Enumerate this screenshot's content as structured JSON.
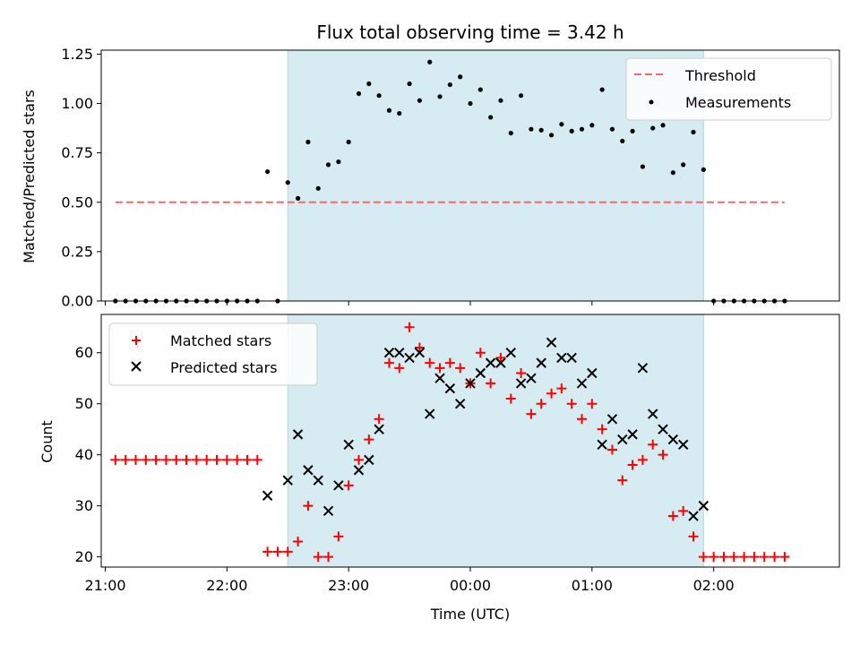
{
  "chart_data": [
    {
      "type": "scatter",
      "title": "Flux total observing time = 3.42 h",
      "ylabel": "Matched/Predicted stars",
      "xlabel": "",
      "x_unit": "minutes relative to 00:00 UTC",
      "xlim": [
        -182,
        182
      ],
      "ylim": [
        0,
        1.27
      ],
      "yticks": [
        0,
        0.25,
        0.5,
        0.75,
        1.0,
        1.25
      ],
      "ytick_labels": [
        "0.00",
        "0.25",
        "0.50",
        "0.75",
        "1.00",
        "1.25"
      ],
      "grid": false,
      "legend_position": "top-right",
      "shaded_interval": {
        "x": [
          -90,
          115
        ],
        "color": "#add8e6"
      },
      "threshold": {
        "name": "Threshold",
        "y": 0.5,
        "x": [
          -175,
          155
        ],
        "color": "#ff6464"
      },
      "series": [
        {
          "name": "Measurements",
          "marker": "dot",
          "color": "#000000",
          "points": [
            [
              -175,
              0
            ],
            [
              -170,
              0
            ],
            [
              -165,
              0
            ],
            [
              -160,
              0
            ],
            [
              -155,
              0
            ],
            [
              -150,
              0
            ],
            [
              -145,
              0
            ],
            [
              -140,
              0
            ],
            [
              -135,
              0
            ],
            [
              -130,
              0
            ],
            [
              -125,
              0
            ],
            [
              -120,
              0
            ],
            [
              -115,
              0
            ],
            [
              -110,
              0
            ],
            [
              -105,
              0
            ],
            [
              -95,
              0
            ],
            [
              -100,
              0.655
            ],
            [
              -90,
              0.6
            ],
            [
              -85,
              0.52
            ],
            [
              -80,
              0.805
            ],
            [
              -75,
              0.57
            ],
            [
              -70,
              0.69
            ],
            [
              -65,
              0.705
            ],
            [
              -60,
              0.805
            ],
            [
              -55,
              1.05
            ],
            [
              -50,
              1.1
            ],
            [
              -45,
              1.04
            ],
            [
              -40,
              0.965
            ],
            [
              -35,
              0.95
            ],
            [
              -30,
              1.1
            ],
            [
              -25,
              1.015
            ],
            [
              -20,
              1.21
            ],
            [
              -15,
              1.035
            ],
            [
              -10,
              1.095
            ],
            [
              -5,
              1.135
            ],
            [
              0,
              1.0
            ],
            [
              5,
              1.07
            ],
            [
              10,
              0.93
            ],
            [
              15,
              1.015
            ],
            [
              20,
              0.85
            ],
            [
              25,
              1.04
            ],
            [
              30,
              0.87
            ],
            [
              35,
              0.865
            ],
            [
              40,
              0.84
            ],
            [
              45,
              0.895
            ],
            [
              50,
              0.86
            ],
            [
              55,
              0.87
            ],
            [
              60,
              0.89
            ],
            [
              65,
              1.07
            ],
            [
              70,
              0.87
            ],
            [
              75,
              0.81
            ],
            [
              80,
              0.86
            ],
            [
              85,
              0.68
            ],
            [
              90,
              0.875
            ],
            [
              95,
              0.89
            ],
            [
              100,
              0.65
            ],
            [
              105,
              0.69
            ],
            [
              110,
              0.855
            ],
            [
              115,
              0.665
            ],
            [
              120,
              0
            ],
            [
              125,
              0
            ],
            [
              130,
              0
            ],
            [
              135,
              0
            ],
            [
              140,
              0
            ],
            [
              145,
              0
            ],
            [
              150,
              0
            ],
            [
              155,
              0
            ]
          ]
        }
      ]
    },
    {
      "type": "scatter",
      "title": "",
      "ylabel": "Count",
      "xlabel": "Time (UTC)",
      "x_unit": "minutes relative to 00:00 UTC",
      "xlim": [
        -182,
        182
      ],
      "ylim": [
        18,
        67.5
      ],
      "yticks": [
        20,
        30,
        40,
        50,
        60
      ],
      "ytick_labels": [
        "20",
        "30",
        "40",
        "50",
        "60"
      ],
      "xticks": [
        -180,
        -120,
        -60,
        0,
        60,
        120
      ],
      "xtick_labels": [
        "21:00",
        "22:00",
        "23:00",
        "00:00",
        "01:00",
        "02:00"
      ],
      "grid": false,
      "legend_position": "top-left",
      "shaded_interval": {
        "x": [
          -90,
          115
        ],
        "color": "#add8e6"
      },
      "series": [
        {
          "name": "Matched stars",
          "marker": "plus",
          "color": "#ff0000",
          "points": [
            [
              -175,
              39
            ],
            [
              -170,
              39
            ],
            [
              -165,
              39
            ],
            [
              -160,
              39
            ],
            [
              -155,
              39
            ],
            [
              -150,
              39
            ],
            [
              -145,
              39
            ],
            [
              -140,
              39
            ],
            [
              -135,
              39
            ],
            [
              -130,
              39
            ],
            [
              -125,
              39
            ],
            [
              -120,
              39
            ],
            [
              -115,
              39
            ],
            [
              -110,
              39
            ],
            [
              -105,
              39
            ],
            [
              -100,
              21
            ],
            [
              -95,
              21
            ],
            [
              -90,
              21
            ],
            [
              -85,
              23
            ],
            [
              -80,
              30
            ],
            [
              -75,
              20
            ],
            [
              -70,
              20
            ],
            [
              -65,
              24
            ],
            [
              -60,
              34
            ],
            [
              -55,
              39
            ],
            [
              -50,
              43
            ],
            [
              -45,
              47
            ],
            [
              -40,
              58
            ],
            [
              -35,
              57
            ],
            [
              -30,
              65
            ],
            [
              -25,
              61
            ],
            [
              -20,
              58
            ],
            [
              -15,
              57
            ],
            [
              -10,
              58
            ],
            [
              -5,
              57
            ],
            [
              0,
              54
            ],
            [
              5,
              60
            ],
            [
              10,
              54
            ],
            [
              15,
              59
            ],
            [
              20,
              51
            ],
            [
              25,
              56
            ],
            [
              30,
              48
            ],
            [
              35,
              50
            ],
            [
              40,
              52
            ],
            [
              45,
              53
            ],
            [
              50,
              50
            ],
            [
              55,
              47
            ],
            [
              60,
              50
            ],
            [
              65,
              45
            ],
            [
              70,
              41
            ],
            [
              75,
              35
            ],
            [
              80,
              38
            ],
            [
              85,
              39
            ],
            [
              90,
              42
            ],
            [
              95,
              40
            ],
            [
              100,
              28
            ],
            [
              105,
              29
            ],
            [
              110,
              24
            ],
            [
              115,
              20
            ],
            [
              120,
              20
            ],
            [
              125,
              20
            ],
            [
              130,
              20
            ],
            [
              135,
              20
            ],
            [
              140,
              20
            ],
            [
              145,
              20
            ],
            [
              150,
              20
            ],
            [
              155,
              20
            ]
          ]
        },
        {
          "name": "Predicted stars",
          "marker": "x",
          "color": "#000000",
          "points": [
            [
              -100,
              32
            ],
            [
              -90,
              35
            ],
            [
              -85,
              44
            ],
            [
              -80,
              37
            ],
            [
              -75,
              35
            ],
            [
              -70,
              29
            ],
            [
              -65,
              34
            ],
            [
              -60,
              42
            ],
            [
              -55,
              37
            ],
            [
              -50,
              39
            ],
            [
              -45,
              45
            ],
            [
              -40,
              60
            ],
            [
              -35,
              60
            ],
            [
              -30,
              59
            ],
            [
              -25,
              60
            ],
            [
              -20,
              48
            ],
            [
              -15,
              55
            ],
            [
              -10,
              53
            ],
            [
              -5,
              50
            ],
            [
              0,
              54
            ],
            [
              5,
              56
            ],
            [
              10,
              58
            ],
            [
              15,
              58
            ],
            [
              20,
              60
            ],
            [
              25,
              54
            ],
            [
              30,
              55
            ],
            [
              35,
              58
            ],
            [
              40,
              62
            ],
            [
              45,
              59
            ],
            [
              50,
              59
            ],
            [
              55,
              54
            ],
            [
              60,
              56
            ],
            [
              65,
              42
            ],
            [
              70,
              47
            ],
            [
              75,
              43
            ],
            [
              80,
              44
            ],
            [
              85,
              57
            ],
            [
              90,
              48
            ],
            [
              95,
              45
            ],
            [
              100,
              43
            ],
            [
              105,
              42
            ],
            [
              110,
              28
            ],
            [
              115,
              30
            ]
          ]
        }
      ]
    }
  ]
}
